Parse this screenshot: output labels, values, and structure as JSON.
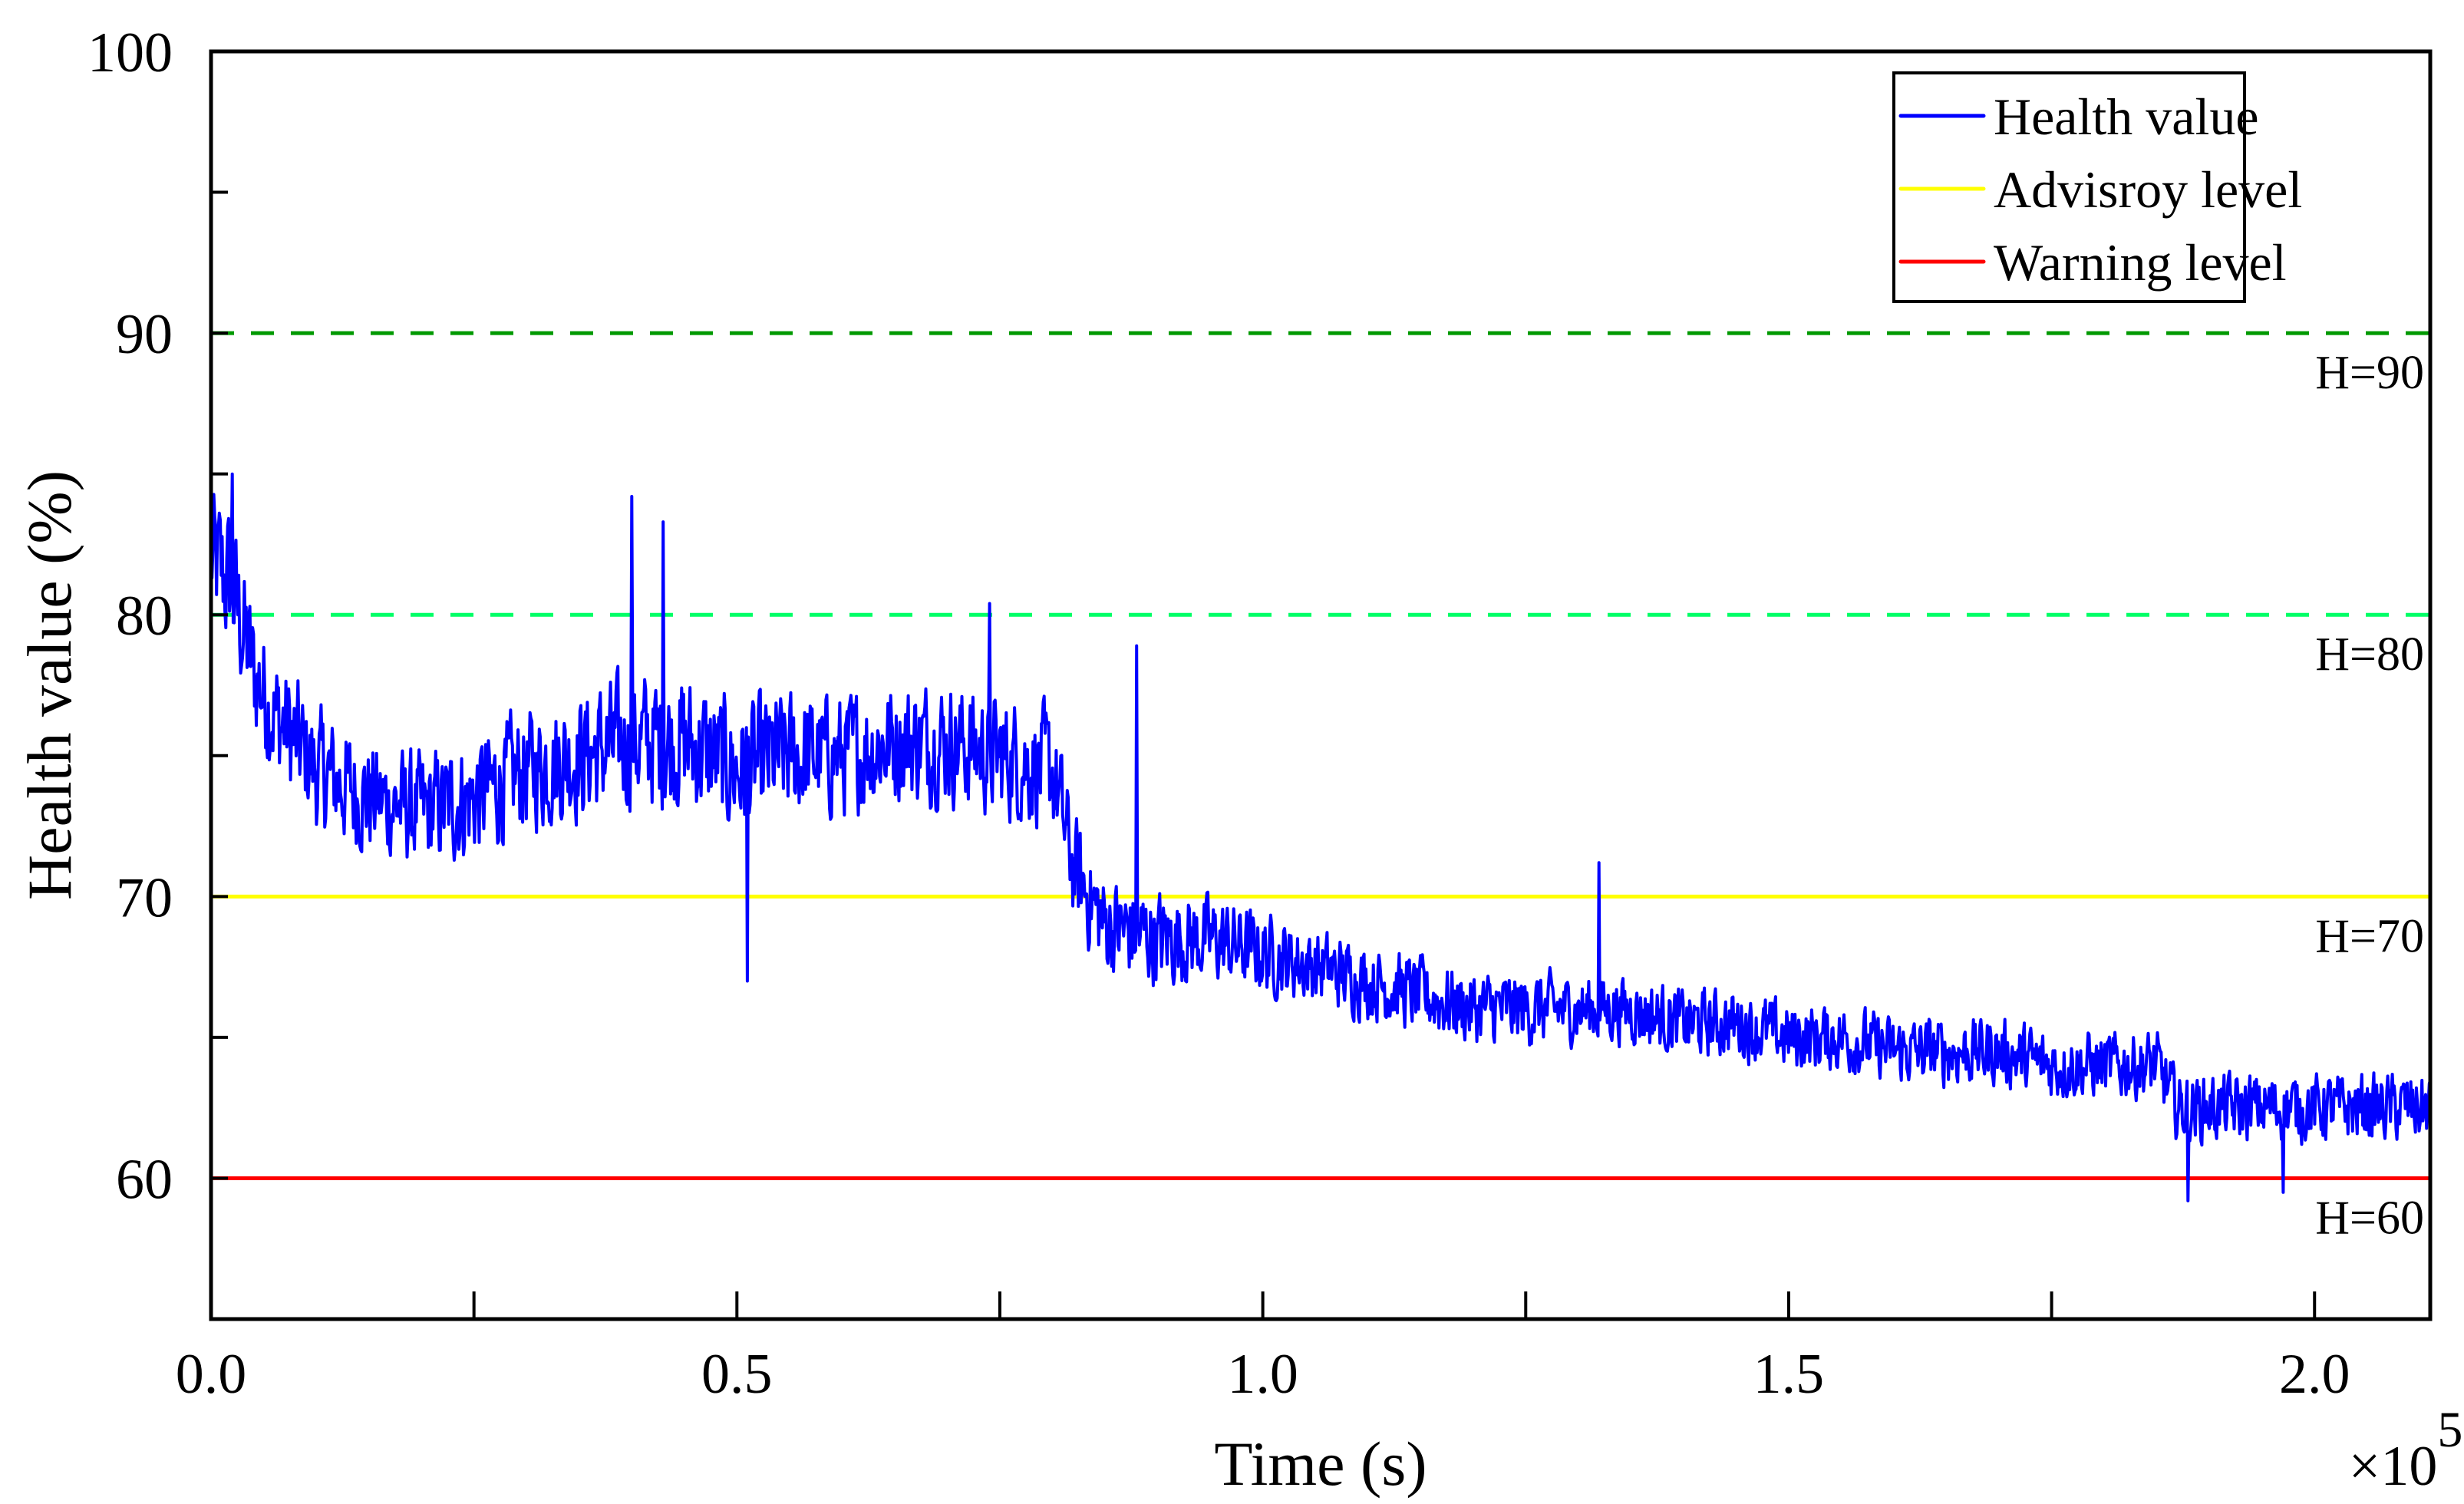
{
  "chart_data": {
    "type": "line",
    "title": "",
    "xlabel": "Time (s)",
    "ylabel": "Health value (%)",
    "x_multiplier_label": "×10",
    "x_multiplier_exp": "5",
    "xlim": [
      0,
      2.11
    ],
    "ylim": [
      55,
      100
    ],
    "x_ticks": [
      0.0,
      0.25,
      0.5,
      0.75,
      1.0,
      1.25,
      1.5,
      1.75,
      2.0
    ],
    "x_tick_labels": [
      "0.0",
      "",
      "0.5",
      "",
      "1.0",
      "",
      "1.5",
      "",
      "2.0"
    ],
    "y_ticks": [
      60,
      65,
      70,
      75,
      80,
      85,
      90,
      95,
      100
    ],
    "y_tick_labels": [
      "60",
      "",
      "70",
      "",
      "80",
      "",
      "90",
      "",
      "100"
    ],
    "grid": false,
    "legend_position": "upper right",
    "legend": [
      {
        "label": "Health value",
        "color": "#0000FF"
      },
      {
        "label": "Advisroy level",
        "color": "#FFFF00"
      },
      {
        "label": "Warning level",
        "color": "#FF0000"
      }
    ],
    "reference_lines": [
      {
        "y": 90,
        "label": "H=90",
        "color": "#009900",
        "style": "dashed"
      },
      {
        "y": 80,
        "label": "H=80",
        "color": "#00FF66",
        "style": "dashed"
      },
      {
        "y": 70,
        "label": "H=70",
        "color": "#FFFF00",
        "style": "solid"
      },
      {
        "y": 60,
        "label": "H=60",
        "color": "#FF0000",
        "style": "solid"
      }
    ],
    "series": [
      {
        "name": "Health value",
        "color": "#0000FF",
        "x": [
          0.0,
          0.02,
          0.04,
          0.06,
          0.08,
          0.1,
          0.15,
          0.2,
          0.25,
          0.3,
          0.35,
          0.4,
          0.45,
          0.5,
          0.55,
          0.6,
          0.65,
          0.7,
          0.75,
          0.8,
          0.82,
          0.85,
          0.9,
          0.95,
          1.0,
          1.05,
          1.1,
          1.15,
          1.2,
          1.25,
          1.3,
          1.35,
          1.4,
          1.45,
          1.5,
          1.55,
          1.6,
          1.65,
          1.7,
          1.75,
          1.8,
          1.85,
          1.87,
          1.9,
          1.95,
          2.0,
          2.05,
          2.11
        ],
        "trend": [
          82,
          81,
          78,
          76.5,
          75.5,
          74.5,
          73.5,
          73,
          73.5,
          74.5,
          75,
          75.5,
          75.5,
          74.5,
          75,
          75,
          75.5,
          75.5,
          75,
          74.5,
          71,
          69,
          68.5,
          68.5,
          68,
          67.5,
          67,
          66.5,
          66,
          66,
          66,
          66,
          65.5,
          65.5,
          65,
          65,
          64.5,
          64.5,
          64.5,
          64,
          64,
          64,
          62.5,
          62.5,
          62.5,
          62.5,
          62.5,
          62.5
        ],
        "noise_amplitude": [
          2.2,
          2.2,
          2,
          1.9,
          1.9,
          1.8,
          1.7,
          1.7,
          1.8,
          1.8,
          1.9,
          2,
          2,
          2,
          1.9,
          1.8,
          1.8,
          1.8,
          1.8,
          1.8,
          1.6,
          1.5,
          1.4,
          1.3,
          1.2,
          1.1,
          1.1,
          1.1,
          1.1,
          1.1,
          1.0,
          1.0,
          1.0,
          1.0,
          1.0,
          1.0,
          1.0,
          1.0,
          1.0,
          1.0,
          1.0,
          1.0,
          1.0,
          1.0,
          1.0,
          1.0,
          1.0,
          1.0
        ],
        "notable_points": [
          {
            "x": 0.02,
            "y": 85.0
          },
          {
            "x": 0.4,
            "y": 84.2
          },
          {
            "x": 0.43,
            "y": 83.3
          },
          {
            "x": 0.51,
            "y": 67.0
          },
          {
            "x": 0.74,
            "y": 80.4
          },
          {
            "x": 0.88,
            "y": 78.9
          },
          {
            "x": 1.32,
            "y": 71.2
          },
          {
            "x": 1.88,
            "y": 59.2
          },
          {
            "x": 1.97,
            "y": 59.5
          }
        ]
      }
    ]
  }
}
